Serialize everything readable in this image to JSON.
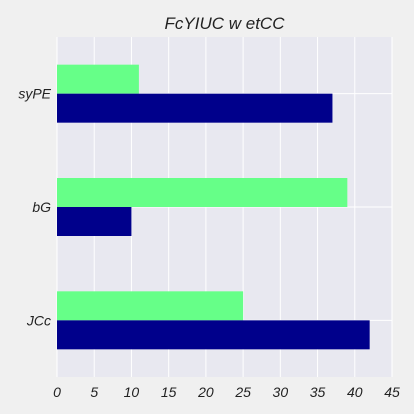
{
  "chart_data": {
    "type": "bar",
    "orientation": "horizontal",
    "title": "FcYIUC w etCC",
    "xlabel": "",
    "ylabel": "",
    "categories": [
      "syPE",
      "bG",
      "JCc"
    ],
    "series": [
      {
        "values": [
          11,
          39,
          25
        ],
        "color": "#66ff88"
      },
      {
        "values": [
          37,
          10,
          42
        ],
        "color": "#00008b"
      }
    ],
    "xlim": [
      0,
      45
    ],
    "xticks": [
      0,
      5,
      10,
      15,
      20,
      25,
      30,
      35,
      40,
      45
    ],
    "grid": true,
    "legend": "none",
    "colors": {
      "background": "#f0f0f0",
      "plot_area": "#e8e8f0",
      "grid": "#ffffff",
      "text": "#222222"
    }
  }
}
